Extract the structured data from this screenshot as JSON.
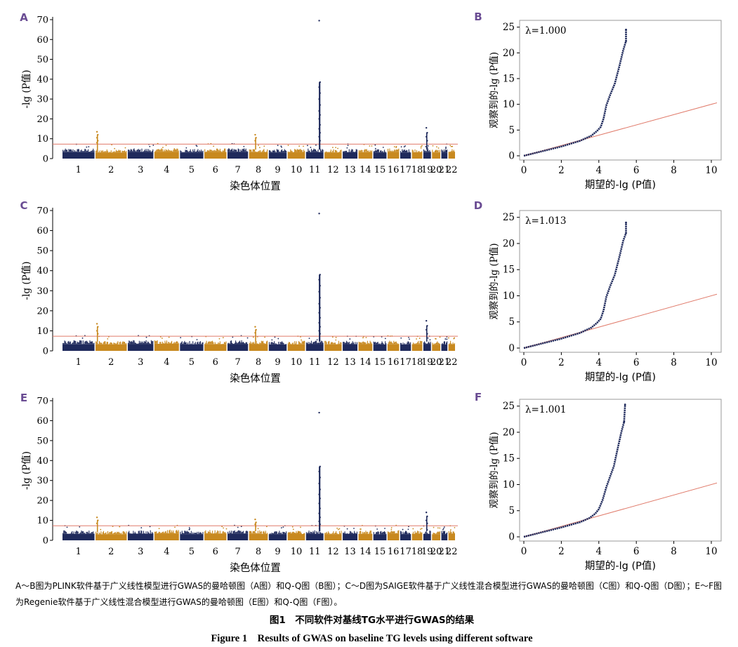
{
  "colors": {
    "navy": "#1f2a5c",
    "gold": "#c8891f",
    "threshold": "#e07a6a",
    "panel_label": "#6a4c93",
    "frame": "#9a9a9a"
  },
  "chart_data": [
    {
      "type": "scatter",
      "panel_label": "A",
      "subtype": "manhattan",
      "xlabel": "染色体位置",
      "ylabel": "-lg (P值)",
      "ylim": [
        0,
        70
      ],
      "yticks": [
        "0",
        "10",
        "20",
        "30",
        "40",
        "50",
        "60",
        "70"
      ],
      "categories": [
        "1",
        "2",
        "3",
        "4",
        "5",
        "6",
        "7",
        "8",
        "9",
        "10",
        "11",
        "12",
        "13",
        "14",
        "15",
        "16",
        "17",
        "18",
        "19",
        "20",
        "21",
        "22"
      ],
      "threshold": 7.3,
      "base_heights": [
        4.5,
        4.2,
        4.6,
        4.8,
        4.3,
        4.6,
        4.7,
        4.5,
        4.3,
        4.4,
        4.5,
        4.3,
        4.4,
        4.5,
        4.2,
        4.6,
        4.3,
        4.4,
        4.5,
        4.2,
        4.3,
        4.4
      ],
      "peaks": [
        {
          "chromosome": "2",
          "values": [
            13.5,
            12.0,
            10.5,
            9.0,
            8.0
          ]
        },
        {
          "chromosome": "8",
          "values": [
            12.0,
            10.5,
            9.0
          ]
        },
        {
          "chromosome": "11",
          "values": [
            69.5,
            38.5,
            36.0,
            33.0,
            30.0,
            27.0,
            24.0,
            22.0,
            20.0,
            17.0,
            15.0,
            13.0,
            11.0,
            9.0
          ]
        },
        {
          "chromosome": "19",
          "values": [
            15.5,
            13.0,
            11.0,
            9.0
          ]
        }
      ]
    },
    {
      "type": "scatter",
      "panel_label": "B",
      "subtype": "qq",
      "xlabel": "期望的-lg (P值)",
      "ylabel": "观察到的-lg (P值)",
      "lambda_text": "λ=1.000",
      "xlim": [
        0,
        10.3
      ],
      "ylim": [
        0,
        25.5
      ],
      "xticks": [
        "0",
        "2",
        "4",
        "6",
        "8",
        "10"
      ],
      "yticks": [
        "0",
        "5",
        "10",
        "15",
        "20",
        "25"
      ],
      "observed": [
        [
          0,
          0
        ],
        [
          1,
          0.9
        ],
        [
          2,
          1.8
        ],
        [
          3,
          2.9
        ],
        [
          3.6,
          3.9
        ],
        [
          3.9,
          4.8
        ],
        [
          4.1,
          5.6
        ],
        [
          4.25,
          7.2
        ],
        [
          4.4,
          9.8
        ],
        [
          4.6,
          11.8
        ],
        [
          4.85,
          14.0
        ],
        [
          5.1,
          17.5
        ],
        [
          5.3,
          20.5
        ],
        [
          5.45,
          22.3
        ],
        [
          5.45,
          24.5
        ]
      ],
      "reference": [
        [
          0,
          0
        ],
        [
          10.3,
          10.3
        ]
      ]
    },
    {
      "type": "scatter",
      "panel_label": "C",
      "subtype": "manhattan",
      "xlabel": "染色体位置",
      "ylabel": "-lg (P值)",
      "ylim": [
        0,
        70
      ],
      "yticks": [
        "0",
        "10",
        "20",
        "30",
        "40",
        "50",
        "60",
        "70"
      ],
      "categories": [
        "1",
        "2",
        "3",
        "4",
        "5",
        "6",
        "7",
        "8",
        "9",
        "10",
        "11",
        "12",
        "13",
        "14",
        "15",
        "16",
        "17",
        "18",
        "19",
        "20",
        "21",
        "22"
      ],
      "threshold": 7.3,
      "base_heights": [
        4.7,
        4.4,
        4.8,
        4.9,
        4.5,
        4.7,
        4.8,
        4.6,
        4.4,
        4.5,
        4.6,
        4.5,
        4.6,
        4.6,
        4.4,
        4.7,
        4.4,
        4.5,
        4.6,
        4.3,
        4.4,
        4.5
      ],
      "peaks": [
        {
          "chromosome": "2",
          "values": [
            13.5,
            12.0,
            10.0,
            8.5
          ]
        },
        {
          "chromosome": "8",
          "values": [
            12.0,
            10.5,
            9.0
          ]
        },
        {
          "chromosome": "11",
          "values": [
            68.5,
            38.0,
            35.5,
            32.5,
            29.5,
            26.5,
            23.5,
            21.5,
            19.0,
            16.5,
            14.0,
            12.0,
            10.0,
            8.5
          ]
        },
        {
          "chromosome": "19",
          "values": [
            15.0,
            12.5,
            10.5,
            8.5
          ]
        }
      ]
    },
    {
      "type": "scatter",
      "panel_label": "D",
      "subtype": "qq",
      "xlabel": "期望的-lg (P值)",
      "ylabel": "观察到的-lg (P值)",
      "lambda_text": "λ=1.013",
      "xlim": [
        0,
        10.3
      ],
      "ylim": [
        0,
        25.5
      ],
      "xticks": [
        "0",
        "2",
        "4",
        "6",
        "8",
        "10"
      ],
      "yticks": [
        "0",
        "5",
        "10",
        "15",
        "20",
        "25"
      ],
      "observed": [
        [
          0,
          0
        ],
        [
          1,
          0.9
        ],
        [
          2,
          1.8
        ],
        [
          3,
          2.9
        ],
        [
          3.6,
          3.9
        ],
        [
          3.9,
          4.8
        ],
        [
          4.1,
          5.6
        ],
        [
          4.25,
          7.2
        ],
        [
          4.4,
          9.8
        ],
        [
          4.6,
          11.8
        ],
        [
          4.85,
          14.0
        ],
        [
          5.1,
          17.5
        ],
        [
          5.3,
          20.5
        ],
        [
          5.45,
          22.0
        ],
        [
          5.45,
          24.0
        ]
      ],
      "reference": [
        [
          0,
          0
        ],
        [
          10.3,
          10.3
        ]
      ]
    },
    {
      "type": "scatter",
      "panel_label": "E",
      "subtype": "manhattan",
      "xlabel": "染色体位置",
      "ylabel": "-lg (P值)",
      "ylim": [
        0,
        70
      ],
      "yticks": [
        "0",
        "10",
        "20",
        "30",
        "40",
        "50",
        "60",
        "70"
      ],
      "categories": [
        "1",
        "2",
        "3",
        "4",
        "5",
        "6",
        "7",
        "8",
        "9",
        "10",
        "11",
        "12",
        "13",
        "14",
        "15",
        "16",
        "17",
        "18",
        "19",
        "20",
        "21",
        "22"
      ],
      "threshold": 7.3,
      "base_heights": [
        4.5,
        4.2,
        4.6,
        4.8,
        4.3,
        4.6,
        4.7,
        4.5,
        4.3,
        4.4,
        4.5,
        4.3,
        4.4,
        4.5,
        4.2,
        4.6,
        4.3,
        4.4,
        4.5,
        4.2,
        4.3,
        4.4
      ],
      "peaks": [
        {
          "chromosome": "2",
          "values": [
            11.5,
            10.0,
            8.5
          ]
        },
        {
          "chromosome": "8",
          "values": [
            10.5,
            9.0,
            8.0
          ]
        },
        {
          "chromosome": "11",
          "values": [
            64.0,
            37.0,
            34.5,
            31.5,
            28.5,
            25.5,
            23.0,
            21.0,
            18.5,
            16.0,
            13.5,
            11.5,
            9.5,
            8.0
          ]
        },
        {
          "chromosome": "19",
          "values": [
            14.0,
            12.0,
            10.0,
            8.5
          ]
        }
      ]
    },
    {
      "type": "scatter",
      "panel_label": "F",
      "subtype": "qq",
      "xlabel": "期望的-lg (P值)",
      "ylabel": "观察到的-lg (P值)",
      "lambda_text": "λ=1.001",
      "xlim": [
        0,
        10.3
      ],
      "ylim": [
        0,
        25.5
      ],
      "xticks": [
        "0",
        "2",
        "4",
        "6",
        "8",
        "10"
      ],
      "yticks": [
        "0",
        "5",
        "10",
        "15",
        "20",
        "25"
      ],
      "observed": [
        [
          0,
          0
        ],
        [
          1,
          0.9
        ],
        [
          2,
          1.8
        ],
        [
          3,
          2.8
        ],
        [
          3.5,
          3.6
        ],
        [
          3.8,
          4.4
        ],
        [
          4.0,
          5.3
        ],
        [
          4.2,
          7.0
        ],
        [
          4.4,
          9.5
        ],
        [
          4.6,
          11.5
        ],
        [
          4.8,
          13.5
        ],
        [
          5.0,
          16.8
        ],
        [
          5.2,
          20.0
        ],
        [
          5.35,
          22.0
        ],
        [
          5.4,
          25.3
        ]
      ],
      "reference": [
        [
          0,
          0
        ],
        [
          10.3,
          10.3
        ]
      ]
    }
  ],
  "captions": {
    "description": "A～B图为PLINK软件基于广义线性模型进行GWAS的曼哈顿图（A图）和Q-Q图（B图）；C～D图为SAIGE软件基于广义线性混合模型进行GWAS的曼哈顿图（C图）和Q-Q图（D图）；E～F图为Regenie软件基于广义线性混合模型进行GWAS的曼哈顿图（E图）和Q-Q图（F图）。",
    "title_zh": "图1　不同软件对基线TG水平进行GWAS的结果",
    "title_en": "Figure 1　Results of GWAS on baseline TG levels using different software"
  }
}
